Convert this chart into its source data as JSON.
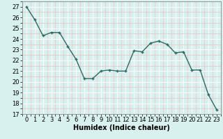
{
  "x": [
    0,
    1,
    2,
    3,
    4,
    5,
    6,
    7,
    8,
    9,
    10,
    11,
    12,
    13,
    14,
    15,
    16,
    17,
    18,
    19,
    20,
    21,
    22,
    23
  ],
  "y": [
    27.0,
    25.8,
    24.3,
    24.6,
    24.6,
    23.3,
    22.1,
    20.3,
    20.3,
    21.0,
    21.1,
    21.0,
    21.0,
    22.9,
    22.8,
    23.6,
    23.8,
    23.5,
    22.7,
    22.8,
    21.1,
    21.1,
    18.8,
    17.4
  ],
  "xlabel": "Humidex (Indice chaleur)",
  "ylim": [
    17,
    27.5
  ],
  "yticks": [
    17,
    18,
    19,
    20,
    21,
    22,
    23,
    24,
    25,
    26,
    27
  ],
  "xticks": [
    0,
    1,
    2,
    3,
    4,
    5,
    6,
    7,
    8,
    9,
    10,
    11,
    12,
    13,
    14,
    15,
    16,
    17,
    18,
    19,
    20,
    21,
    22,
    23
  ],
  "line_color": "#2A6B65",
  "marker_color": "#2A6B65",
  "bg_color": "#D8F0EE",
  "major_grid_color": "#FFFFFF",
  "minor_grid_color": "#E8C8C8",
  "xlabel_fontsize": 7,
  "tick_fontsize": 6
}
